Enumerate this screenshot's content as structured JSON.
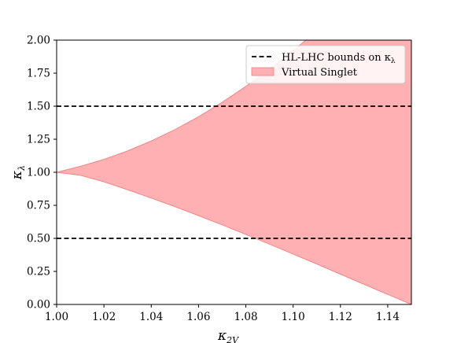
{
  "chart_data": {
    "type": "area",
    "title": "",
    "xlabel": {
      "base": "κ",
      "sub": "2V"
    },
    "ylabel": {
      "base": "κ",
      "sub": "λ"
    },
    "xlim": [
      1.0,
      1.15
    ],
    "ylim": [
      0.0,
      2.0
    ],
    "xticks": [
      1.0,
      1.02,
      1.04,
      1.06,
      1.08,
      1.1,
      1.12,
      1.14
    ],
    "xtick_labels": [
      "1.00",
      "1.02",
      "1.04",
      "1.06",
      "1.08",
      "1.10",
      "1.12",
      "1.14"
    ],
    "yticks": [
      0.0,
      0.25,
      0.5,
      0.75,
      1.0,
      1.25,
      1.5,
      1.75,
      2.0
    ],
    "ytick_labels": [
      "0.00",
      "0.25",
      "0.50",
      "0.75",
      "1.00",
      "1.25",
      "1.50",
      "1.75",
      "2.00"
    ],
    "grid": false,
    "legend_position": "top-right",
    "series": [
      {
        "name": "Virtual Singlet",
        "kind": "band",
        "color": "#ffb0b3",
        "edge_color": "#f08080",
        "x": [
          1.0,
          1.01,
          1.02,
          1.03,
          1.04,
          1.05,
          1.06,
          1.07,
          1.08,
          1.09,
          1.1,
          1.11,
          1.12,
          1.13,
          1.14,
          1.15
        ],
        "upper": [
          1.0,
          1.045,
          1.098,
          1.162,
          1.237,
          1.323,
          1.42,
          1.53,
          1.65,
          1.78,
          1.92,
          2.07,
          2.24,
          2.42,
          2.61,
          2.81
        ],
        "lower": [
          1.0,
          0.977,
          0.928,
          0.868,
          0.805,
          0.74,
          0.672,
          0.602,
          0.53,
          0.456,
          0.381,
          0.306,
          0.229,
          0.152,
          0.076,
          0.0
        ]
      },
      {
        "name": "HL-LHC bounds on κ",
        "name_sub": "λ",
        "kind": "hlines",
        "style": "dashed",
        "color": "#000000",
        "y": [
          0.5,
          1.5
        ]
      }
    ]
  }
}
